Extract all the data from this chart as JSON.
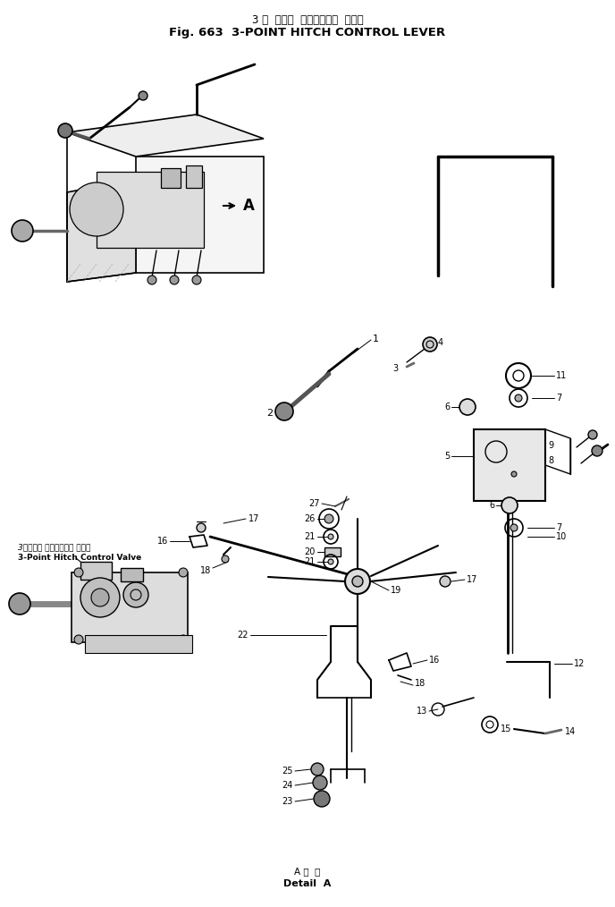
{
  "title_jp": "3 点  ヒッチ  コントロール  レバー",
  "title_en": "Fig. 663  3-POINT HITCH CONTROL LEVER",
  "detail_label_jp": "A 部  詳",
  "detail_label_en": "Detail  A",
  "bg_color": "#ffffff",
  "lc": "#000000",
  "fig_width": 6.88,
  "fig_height": 10.14,
  "dpi": 100,
  "valve_label_jp": "3点ヒッチ コントロール バルブ",
  "valve_label_en": "3-Point Hitch Control Valve"
}
